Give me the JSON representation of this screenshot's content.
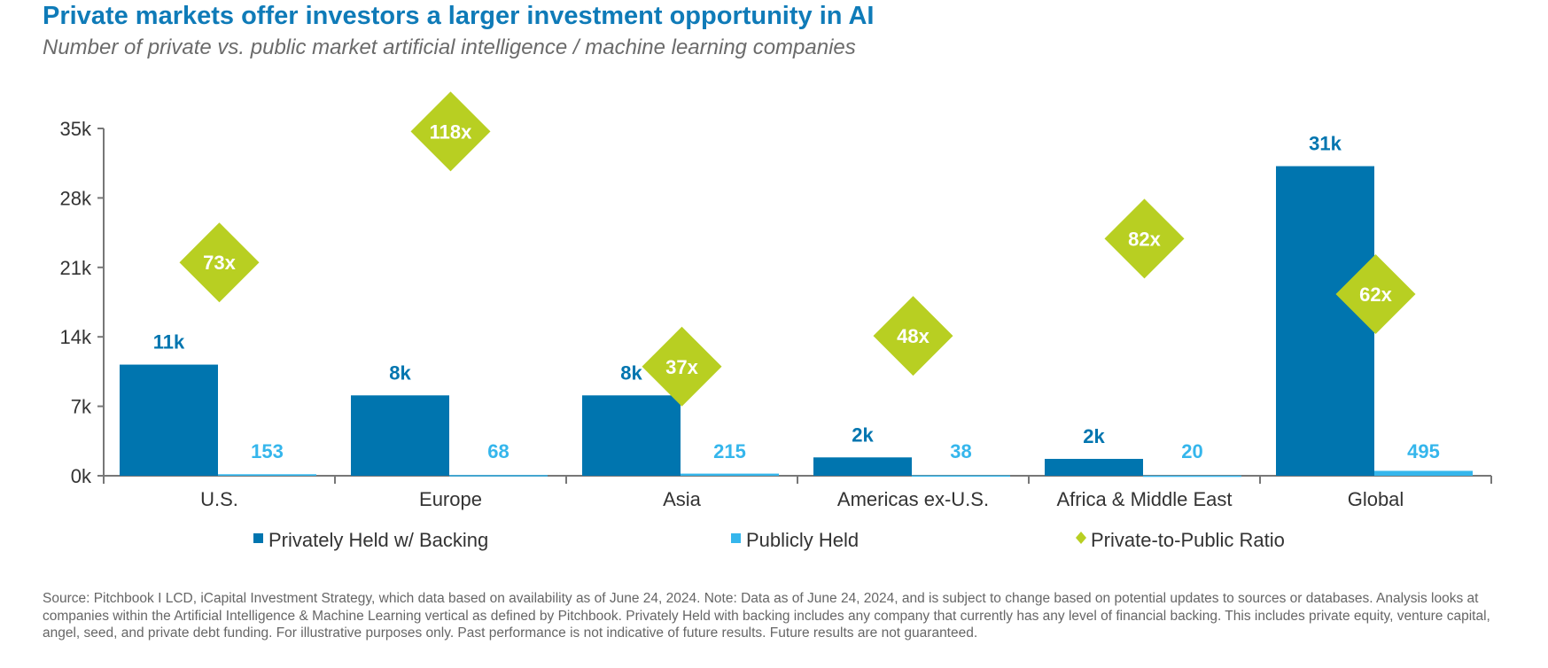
{
  "header": {
    "title": "Private markets offer investors a larger investment opportunity in AI",
    "subtitle": "Number of private vs. public market artificial intelligence / machine learning companies"
  },
  "colors": {
    "title": "#0f7bb8",
    "private": "#0075af",
    "public": "#35b6ec",
    "ratio": "#b8cf22",
    "axis": "#777777",
    "text": "#333333",
    "ratio_text": "#ffffff"
  },
  "chart_data": {
    "type": "bar",
    "title": "Number of private vs. public market artificial intelligence / machine learning companies",
    "categories": [
      "U.S.",
      "Europe",
      "Asia",
      "Americas ex-U.S.",
      "Africa & Middle East",
      "Global"
    ],
    "category_labels": [
      "U.S.",
      "Europe",
      "Asia",
      "Americas    ex-U.S.",
      "Africa & Middle East",
      "Global"
    ],
    "ylim": [
      0,
      35000
    ],
    "yticks": [
      0,
      7000,
      14000,
      21000,
      28000,
      35000
    ],
    "ytick_labels": [
      "0k",
      "7k",
      "14k",
      "21k",
      "28k",
      "35k"
    ],
    "series": [
      {
        "name": "Privately Held w/ Backing",
        "values": [
          11200,
          8100,
          8100,
          1850,
          1700,
          31200
        ],
        "labels": [
          "11k",
          "8k",
          "8k",
          "2k",
          "2k",
          "31k"
        ]
      },
      {
        "name": "Publicly Held",
        "values": [
          153,
          68,
          215,
          38,
          20,
          495
        ],
        "labels": [
          "153",
          "68",
          "215",
          "38",
          "20",
          "495"
        ]
      },
      {
        "name": "Private-to-Public Ratio",
        "marker": "diamond",
        "values": [
          73,
          118,
          37,
          48,
          82,
          62
        ],
        "labels": [
          "73x",
          "118x",
          "37x",
          "48x",
          "82x",
          "62x"
        ],
        "display_y": [
          21500,
          34700,
          11000,
          14100,
          23900,
          18300
        ]
      }
    ],
    "legend": [
      "Privately Held w/ Backing",
      "Publicly Held",
      "Private-to-Public Ratio"
    ],
    "legend_position": "bottom",
    "grid": false
  },
  "footer": {
    "source": "Source: Pitchbook I LCD, iCapital Investment Strategy, which data based on availability as of June 24, 2024. Note: Data as of June 24, 2024, and is subject to change based on potential updates to sources or databases. Analysis looks at companies within the Artificial Intelligence & Machine Learning vertical as defined by Pitchbook. Privately Held with backing includes any company that currently has any level of financial backing. This includes private equity, venture capital, angel, seed, and private debt funding. For illustrative purposes only. Past performance is not indicative of future results. Future results are not guaranteed."
  }
}
